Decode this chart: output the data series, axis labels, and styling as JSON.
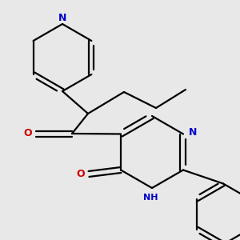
{
  "background_color": "#e8e8e8",
  "bond_color": "#000000",
  "n_color": "#0000cc",
  "o_color": "#cc0000",
  "line_width": 1.6,
  "figsize": [
    3.0,
    3.0
  ],
  "dpi": 100,
  "xlim": [
    0,
    300
  ],
  "ylim": [
    0,
    300
  ]
}
